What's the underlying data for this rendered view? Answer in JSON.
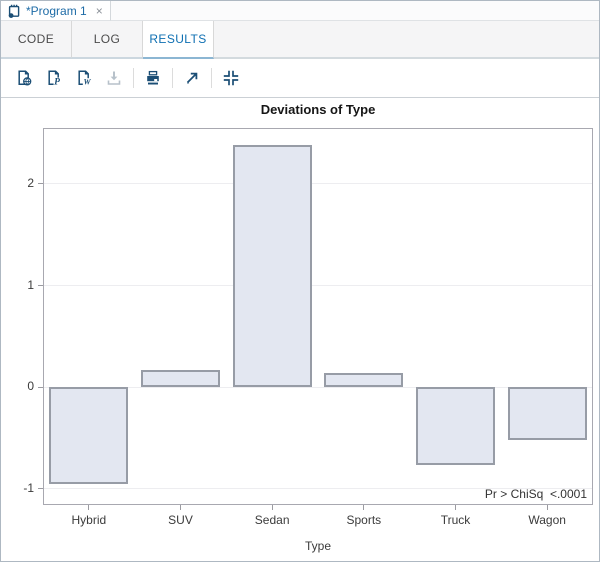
{
  "window": {
    "program_tab": {
      "title": "*Program 1",
      "close_glyph": "×"
    },
    "view_tabs": [
      {
        "label": "CODE"
      },
      {
        "label": "LOG"
      },
      {
        "label": "RESULTS"
      }
    ],
    "active_view_tab": "RESULTS",
    "toolbar": {
      "icons": [
        {
          "name": "download-results-html"
        },
        {
          "name": "download-results-pdf"
        },
        {
          "name": "download-results-rtf"
        },
        {
          "name": "download",
          "disabled": true
        },
        {
          "name": "print"
        },
        {
          "name": "open-in-new-tab"
        },
        {
          "name": "exit-maximized-view"
        }
      ]
    }
  },
  "colors": {
    "accent_blue": "#1d6ba6",
    "active_tab_blue": "#0e6fb2",
    "icon_navy": "#1b4e75",
    "disabled_icon": "#b7c1ca",
    "bar_fill": "#e3e7f1",
    "bar_stroke": "#979ca6",
    "frame_border": "#a8a8b0",
    "gridline": "#ededf0"
  },
  "chart_data": {
    "type": "bar",
    "title": "Deviations of Type",
    "categories": [
      "Hybrid",
      "SUV",
      "Sedan",
      "Sports",
      "Truck",
      "Wagon"
    ],
    "values": [
      -0.95,
      0.17,
      2.38,
      0.14,
      -0.77,
      -0.52
    ],
    "xlabel": "Type",
    "ylabel": "",
    "ylim": [
      -1.16,
      2.55
    ],
    "yticks": [
      -1,
      0,
      1,
      2
    ],
    "grid": true,
    "legend": null,
    "annotation": "Pr > ChiSq  <.0001"
  }
}
